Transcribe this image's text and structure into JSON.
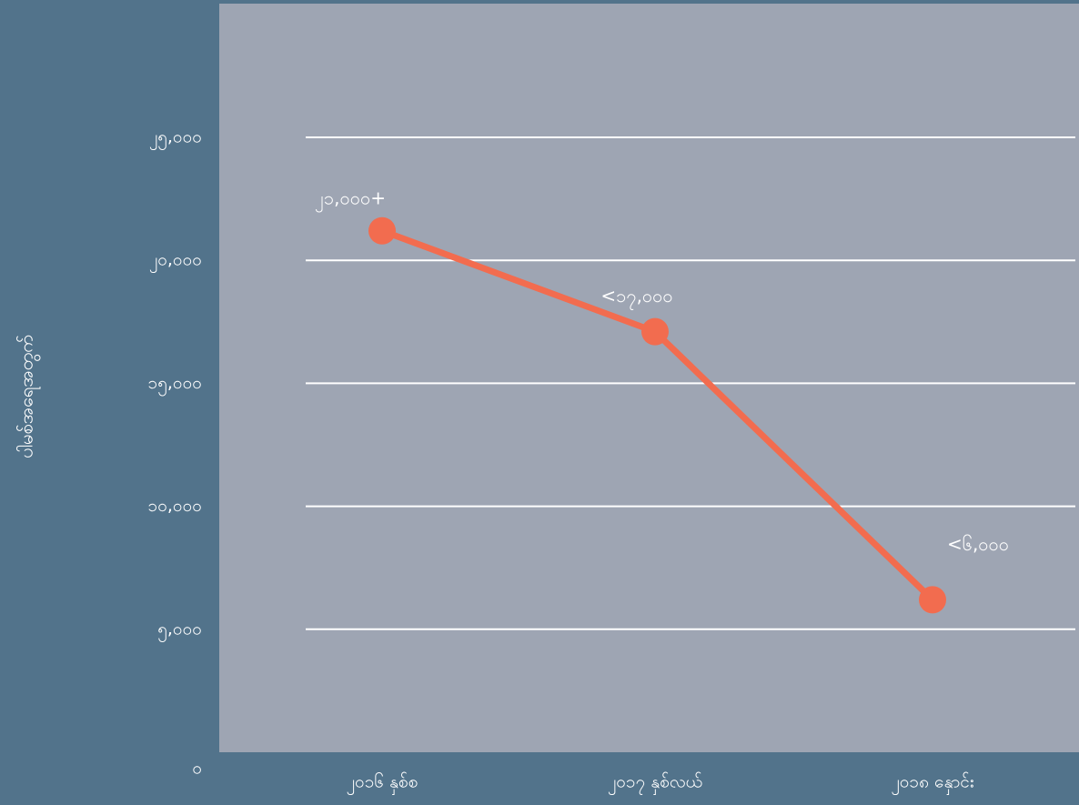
{
  "chart_data": {
    "type": "line",
    "title": "",
    "ylabel": "ပါမစ်အရေအတွက်",
    "xlabel": "",
    "ylim": [
      0,
      25000
    ],
    "yticks": [
      0,
      5000,
      10000,
      15000,
      20000,
      25000
    ],
    "yticklabels": [
      "၀",
      "၅,၀၀၀",
      "၁၀,၀၀၀",
      "၁၅,၀၀၀",
      "၂၀,၀၀၀",
      "၂၅,၀၀၀"
    ],
    "categories": [
      "၂၀၁၆ နှစ်စ",
      "၂၀၁၇ နှစ်လယ်",
      "၂၀၁၈ နှောင်း"
    ],
    "series": [
      {
        "values": [
          21200,
          17100,
          6200
        ],
        "data_labels": [
          "၂၁,၀၀၀+",
          "<၁၇,၀၀၀",
          "<၆,၀၀၀"
        ]
      }
    ],
    "grid": true,
    "colors": {
      "page_background": "#52738b",
      "plot_background": "#9ea5b3",
      "gridline": "#ffffff",
      "series_line": "#f26c4f",
      "text": "#ffffff"
    }
  }
}
